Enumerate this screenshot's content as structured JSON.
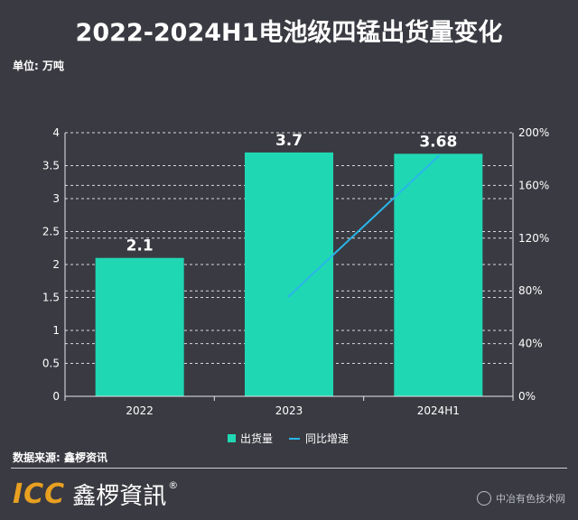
{
  "title": "2022-2024H1电池级四锰出货量变化",
  "unit_label": "单位: 万吨",
  "source_label": "数据来源: 鑫椤资讯",
  "logo": {
    "icc": "ICC",
    "cn": "鑫椤資訊",
    "reg": "®"
  },
  "site_watermark": "中冶有色技术网",
  "colors": {
    "bar": "#1fd8b3",
    "line": "#29b6e8",
    "background": "#3a3a42",
    "text": "#ffffff"
  },
  "chart_data": {
    "type": "bar",
    "categories": [
      "2022",
      "2023",
      "2024H1"
    ],
    "series": [
      {
        "name": "出货量",
        "type": "bar",
        "axis": "left",
        "values": [
          2.1,
          3.7,
          3.68
        ],
        "labels": [
          "2.1",
          "3.7",
          "3.68"
        ]
      },
      {
        "name": "同比增速",
        "type": "line",
        "axis": "right",
        "values": [
          null,
          76,
          182
        ]
      }
    ],
    "ylim_left": [
      0,
      4
    ],
    "left_ticks": [
      "0",
      "0.5",
      "1",
      "1.5",
      "2",
      "2.5",
      "3",
      "3.5",
      "4"
    ],
    "ylim_right": [
      0,
      200
    ],
    "right_ticks": [
      "0%",
      "40%",
      "80%",
      "120%",
      "160%",
      "200%"
    ],
    "legend_position": "bottom",
    "grid": "dashed horizontal"
  }
}
